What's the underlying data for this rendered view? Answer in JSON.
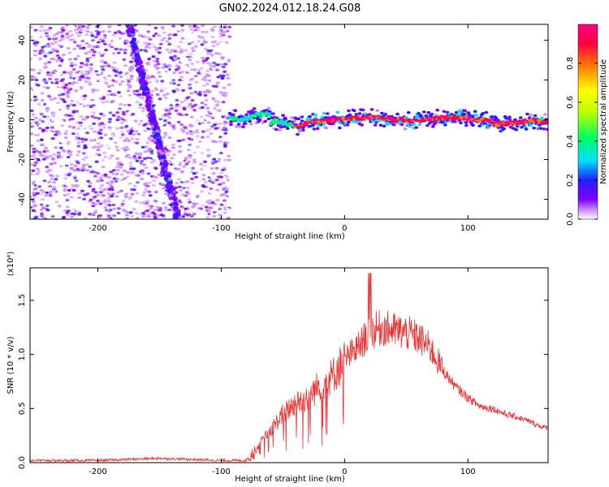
{
  "title": "GN02.2024.012.18.24.G08",
  "chart_data": [
    {
      "type": "heatmap",
      "xlabel": "Height of straight line (km)",
      "ylabel": "Frequency (Hz)",
      "xlim": [
        -255,
        165
      ],
      "ylim": [
        -50,
        48
      ],
      "xticks": [
        -200,
        -100,
        0,
        100
      ],
      "yticks": [
        40,
        20,
        0,
        -20,
        -40
      ],
      "colorbar": {
        "label": "Normalized spectral amplitude",
        "range": [
          0,
          1
        ],
        "ticks": [
          "0.0",
          "0.2",
          "0.4",
          "0.6",
          "0.8"
        ],
        "tick_values": [
          0.0,
          0.2,
          0.4,
          0.6,
          0.8
        ],
        "colors": [
          "#ffffff",
          "#cc88ff",
          "#8000ff",
          "#2020ff",
          "#00e0ff",
          "#00ff60",
          "#c0ff00",
          "#ffff00",
          "#ff8000",
          "#ff0040",
          "#ff0080"
        ]
      },
      "features": [
        {
          "name": "noise-band",
          "x_range": [
            -255,
            -93
          ]
        },
        {
          "name": "diagonal-streak",
          "x": [
            -175,
            -135
          ],
          "y": [
            48,
            -50
          ]
        },
        {
          "name": "signal-line",
          "x_range": [
            -93,
            165
          ],
          "y_range": [
            -4,
            3
          ]
        }
      ]
    },
    {
      "type": "line",
      "xlabel": "Height of straight line (km)",
      "ylabel": "SNR (10 * v/v)",
      "y_multiplier": "(x10⁴)",
      "xlim": [
        -255,
        165
      ],
      "ylim": [
        0,
        1.8
      ],
      "xticks": [
        -200,
        -100,
        0,
        100
      ],
      "yticks": [
        "0.0",
        "0.5",
        "1.0",
        "1.5"
      ],
      "ytick_values": [
        0.0,
        0.5,
        1.0,
        1.5
      ],
      "color": "#ee3333",
      "x": [
        -255,
        -200,
        -150,
        -100,
        -80,
        -75,
        -60,
        -50,
        -40,
        -30,
        -20,
        -10,
        0,
        10,
        20,
        30,
        40,
        50,
        60,
        70,
        80,
        90,
        100,
        110,
        120,
        130,
        140,
        150,
        160,
        165
      ],
      "y": [
        0.02,
        0.02,
        0.04,
        0.02,
        0.02,
        0.08,
        0.3,
        0.45,
        0.55,
        0.6,
        0.72,
        0.8,
        0.95,
        1.05,
        1.2,
        1.25,
        1.22,
        1.2,
        1.15,
        1.05,
        0.85,
        0.7,
        0.6,
        0.52,
        0.5,
        0.45,
        0.42,
        0.38,
        0.33,
        0.32
      ]
    }
  ]
}
